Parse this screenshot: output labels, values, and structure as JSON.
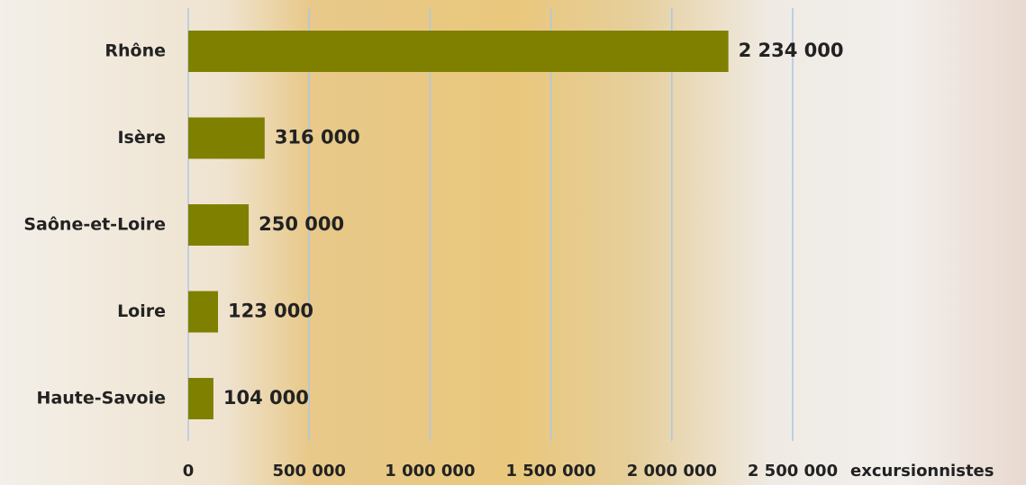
{
  "chart_data": {
    "type": "bar",
    "orientation": "horizontal",
    "categories": [
      "Rhône",
      "Isère",
      "Saône-et-Loire",
      "Loire",
      "Haute-Savoie"
    ],
    "values": [
      2234000,
      316000,
      250000,
      123000,
      104000
    ],
    "value_labels": [
      "2 234 000",
      "316 000",
      "250 000",
      "123 000",
      "104 000"
    ],
    "color": "#808000",
    "xlabel": "excursionnistes",
    "xlim": [
      0,
      2500000
    ],
    "xticks": [
      0,
      {
        "value": 500000,
        "label": "500 000"
      },
      {
        "value": 1000000,
        "label": "1 000 000"
      },
      {
        "value": 1500000,
        "label": "1 500 000"
      },
      {
        "value": 2000000,
        "label": "2 000 000"
      },
      {
        "value": 2500000,
        "label": "2 500 000"
      }
    ],
    "grid": true,
    "grid_color": "#a9c8e8"
  }
}
